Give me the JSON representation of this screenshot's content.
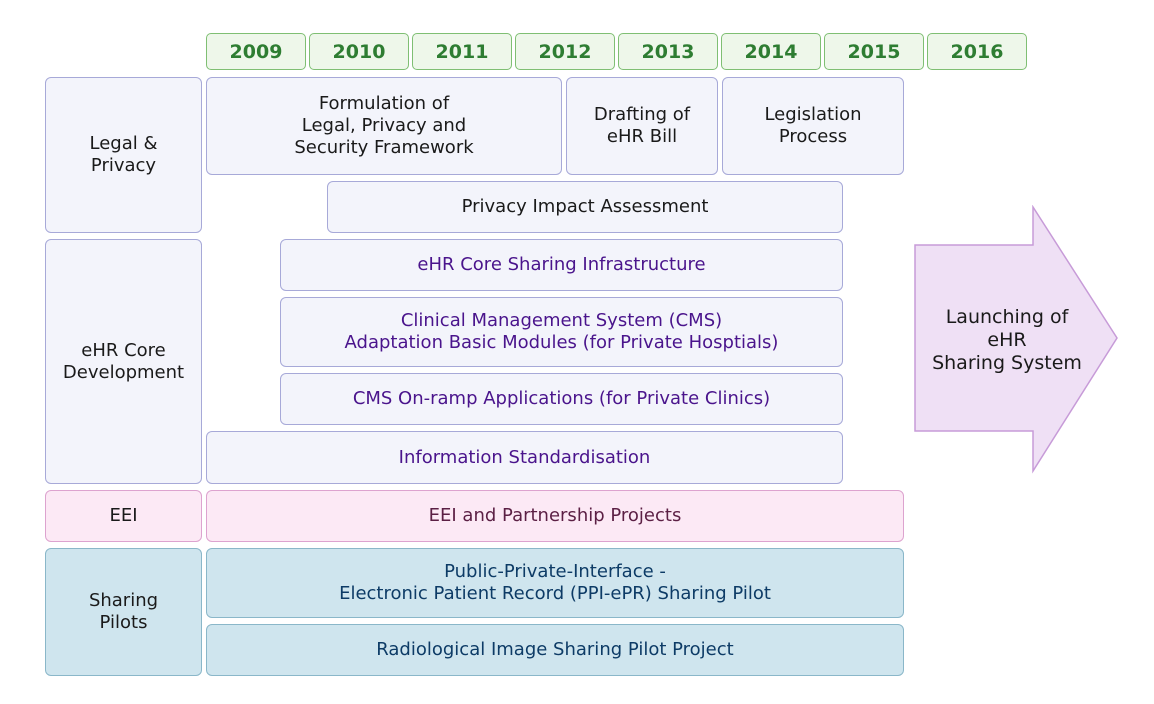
{
  "years": [
    "2009",
    "2010",
    "2011",
    "2012",
    "2013",
    "2014",
    "2015",
    "2016"
  ],
  "categories": {
    "legal": "Legal &\nPrivacy",
    "ehr": "eHR Core\nDevelopment",
    "eei": "EEI",
    "pilots": "Sharing\nPilots"
  },
  "bars": {
    "formulation": "Formulation of\nLegal, Privacy and\nSecurity Framework",
    "drafting": "Drafting of\neHR Bill",
    "legislation": "Legislation\nProcess",
    "pia": "Privacy Impact Assessment",
    "core_infra": "eHR Core Sharing Infrastructure",
    "cms": "Clinical Management System (CMS)\nAdaptation Basic Modules (for Private Hosptials)",
    "onramp": "CMS On-ramp Applications (for Private Clinics)",
    "standardisation": "Information Standardisation",
    "eei_projects": "EEI and Partnership Projects",
    "ppi": "Public-Private-Interface -\nElectronic Patient Record (PPI-ePR) Sharing Pilot",
    "radiological": "Radiological Image Sharing Pilot Project"
  },
  "arrow_label": "Launching of\neHR\nSharing System",
  "colors": {
    "year_fill": "#eef7ea",
    "year_text": "#2e7d32",
    "gray_fill": "#f3f4fb",
    "purple_text": "#4a148c",
    "pink_fill": "#fce9f5",
    "blue_fill": "#cfe5ee",
    "arrow_fill": "#efe0f5"
  }
}
